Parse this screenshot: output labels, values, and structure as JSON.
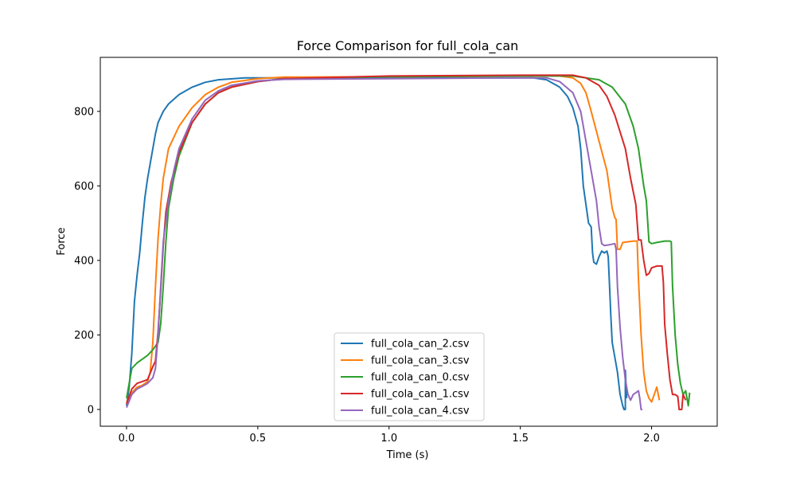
{
  "chart_data": {
    "type": "line",
    "title": "Force Comparison for full_cola_can",
    "xlabel": "Time (s)",
    "ylabel": "Force",
    "xlim": [
      -0.1,
      2.25
    ],
    "ylim": [
      -45,
      945
    ],
    "xticks": [
      0.0,
      0.5,
      1.0,
      1.5,
      2.0
    ],
    "xtick_labels": [
      "0.0",
      "0.5",
      "1.0",
      "1.5",
      "2.0"
    ],
    "yticks": [
      0,
      200,
      400,
      600,
      800
    ],
    "ytick_labels": [
      "0",
      "200",
      "400",
      "600",
      "800"
    ],
    "grid": false,
    "legend_position": "bottom-center",
    "series": [
      {
        "name": "full_cola_can_2.csv",
        "color": "#1f77b4",
        "points": [
          [
            0.0,
            10
          ],
          [
            0.01,
            60
          ],
          [
            0.02,
            150
          ],
          [
            0.03,
            290
          ],
          [
            0.04,
            360
          ],
          [
            0.05,
            420
          ],
          [
            0.06,
            500
          ],
          [
            0.07,
            570
          ],
          [
            0.08,
            620
          ],
          [
            0.09,
            660
          ],
          [
            0.1,
            700
          ],
          [
            0.11,
            740
          ],
          [
            0.12,
            770
          ],
          [
            0.14,
            800
          ],
          [
            0.16,
            820
          ],
          [
            0.2,
            845
          ],
          [
            0.25,
            865
          ],
          [
            0.3,
            878
          ],
          [
            0.35,
            885
          ],
          [
            0.45,
            890
          ],
          [
            0.6,
            890
          ],
          [
            1.0,
            890
          ],
          [
            1.4,
            890
          ],
          [
            1.55,
            890
          ],
          [
            1.6,
            885
          ],
          [
            1.65,
            865
          ],
          [
            1.68,
            840
          ],
          [
            1.7,
            810
          ],
          [
            1.72,
            760
          ],
          [
            1.73,
            700
          ],
          [
            1.74,
            600
          ],
          [
            1.75,
            550
          ],
          [
            1.76,
            500
          ],
          [
            1.77,
            490
          ],
          [
            1.775,
            420
          ],
          [
            1.78,
            395
          ],
          [
            1.79,
            390
          ],
          [
            1.8,
            410
          ],
          [
            1.81,
            425
          ],
          [
            1.82,
            420
          ],
          [
            1.83,
            425
          ],
          [
            1.835,
            410
          ],
          [
            1.84,
            330
          ],
          [
            1.845,
            250
          ],
          [
            1.85,
            180
          ],
          [
            1.86,
            140
          ],
          [
            1.87,
            100
          ],
          [
            1.88,
            40
          ],
          [
            1.89,
            10
          ],
          [
            1.895,
            0
          ],
          [
            1.9,
            0
          ],
          [
            1.9,
            105
          ],
          [
            1.905,
            30
          ]
        ]
      },
      {
        "name": "full_cola_can_3.csv",
        "color": "#ff7f0e",
        "points": [
          [
            0.0,
            20
          ],
          [
            0.02,
            45
          ],
          [
            0.04,
            60
          ],
          [
            0.06,
            65
          ],
          [
            0.08,
            75
          ],
          [
            0.09,
            100
          ],
          [
            0.1,
            180
          ],
          [
            0.11,
            330
          ],
          [
            0.12,
            460
          ],
          [
            0.13,
            550
          ],
          [
            0.14,
            620
          ],
          [
            0.16,
            700
          ],
          [
            0.2,
            760
          ],
          [
            0.25,
            810
          ],
          [
            0.3,
            845
          ],
          [
            0.35,
            865
          ],
          [
            0.4,
            878
          ],
          [
            0.5,
            888
          ],
          [
            0.6,
            892
          ],
          [
            1.0,
            893
          ],
          [
            1.5,
            895
          ],
          [
            1.65,
            895
          ],
          [
            1.7,
            890
          ],
          [
            1.73,
            875
          ],
          [
            1.75,
            850
          ],
          [
            1.77,
            800
          ],
          [
            1.8,
            720
          ],
          [
            1.83,
            640
          ],
          [
            1.85,
            540
          ],
          [
            1.86,
            515
          ],
          [
            1.865,
            510
          ],
          [
            1.87,
            430
          ],
          [
            1.88,
            430
          ],
          [
            1.89,
            448
          ],
          [
            1.93,
            452
          ],
          [
            1.945,
            452
          ],
          [
            1.95,
            350
          ],
          [
            1.96,
            200
          ],
          [
            1.97,
            100
          ],
          [
            1.98,
            50
          ],
          [
            1.99,
            30
          ],
          [
            2.0,
            20
          ],
          [
            2.01,
            40
          ],
          [
            2.02,
            60
          ],
          [
            2.03,
            25
          ]
        ]
      },
      {
        "name": "full_cola_can_0.csv",
        "color": "#2ca02c",
        "points": [
          [
            0.0,
            30
          ],
          [
            0.01,
            70
          ],
          [
            0.02,
            110
          ],
          [
            0.04,
            125
          ],
          [
            0.06,
            135
          ],
          [
            0.08,
            145
          ],
          [
            0.1,
            160
          ],
          [
            0.11,
            170
          ],
          [
            0.12,
            180
          ],
          [
            0.13,
            230
          ],
          [
            0.14,
            330
          ],
          [
            0.15,
            450
          ],
          [
            0.16,
            540
          ],
          [
            0.18,
            620
          ],
          [
            0.2,
            680
          ],
          [
            0.25,
            770
          ],
          [
            0.3,
            820
          ],
          [
            0.35,
            850
          ],
          [
            0.4,
            865
          ],
          [
            0.5,
            880
          ],
          [
            0.6,
            888
          ],
          [
            1.0,
            893
          ],
          [
            1.5,
            895
          ],
          [
            1.7,
            895
          ],
          [
            1.8,
            885
          ],
          [
            1.85,
            865
          ],
          [
            1.9,
            820
          ],
          [
            1.93,
            760
          ],
          [
            1.95,
            700
          ],
          [
            1.97,
            600
          ],
          [
            1.98,
            560
          ],
          [
            1.99,
            450
          ],
          [
            2.0,
            445
          ],
          [
            2.02,
            448
          ],
          [
            2.05,
            452
          ],
          [
            2.07,
            452
          ],
          [
            2.075,
            450
          ],
          [
            2.08,
            330
          ],
          [
            2.09,
            200
          ],
          [
            2.1,
            120
          ],
          [
            2.11,
            70
          ],
          [
            2.12,
            40
          ],
          [
            2.13,
            50
          ],
          [
            2.14,
            10
          ],
          [
            2.145,
            45
          ]
        ]
      },
      {
        "name": "full_cola_can_1.csv",
        "color": "#d62728",
        "points": [
          [
            0.0,
            15
          ],
          [
            0.02,
            55
          ],
          [
            0.04,
            70
          ],
          [
            0.06,
            75
          ],
          [
            0.08,
            80
          ],
          [
            0.1,
            115
          ],
          [
            0.11,
            130
          ],
          [
            0.12,
            210
          ],
          [
            0.13,
            320
          ],
          [
            0.14,
            440
          ],
          [
            0.15,
            530
          ],
          [
            0.17,
            610
          ],
          [
            0.2,
            690
          ],
          [
            0.25,
            770
          ],
          [
            0.3,
            820
          ],
          [
            0.35,
            850
          ],
          [
            0.4,
            865
          ],
          [
            0.5,
            880
          ],
          [
            0.6,
            888
          ],
          [
            1.0,
            895
          ],
          [
            1.5,
            897
          ],
          [
            1.7,
            897
          ],
          [
            1.75,
            890
          ],
          [
            1.8,
            870
          ],
          [
            1.83,
            840
          ],
          [
            1.86,
            790
          ],
          [
            1.9,
            700
          ],
          [
            1.92,
            620
          ],
          [
            1.94,
            550
          ],
          [
            1.95,
            455
          ],
          [
            1.96,
            455
          ],
          [
            1.97,
            400
          ],
          [
            1.98,
            360
          ],
          [
            1.99,
            365
          ],
          [
            2.0,
            380
          ],
          [
            2.02,
            385
          ],
          [
            2.04,
            385
          ],
          [
            2.045,
            340
          ],
          [
            2.05,
            230
          ],
          [
            2.06,
            150
          ],
          [
            2.07,
            80
          ],
          [
            2.08,
            40
          ],
          [
            2.09,
            40
          ],
          [
            2.1,
            35
          ],
          [
            2.105,
            0
          ],
          [
            2.115,
            0
          ],
          [
            2.12,
            40
          ],
          [
            2.13,
            25
          ]
        ]
      },
      {
        "name": "full_cola_can_4.csv",
        "color": "#9467bd",
        "points": [
          [
            0.0,
            5
          ],
          [
            0.02,
            40
          ],
          [
            0.04,
            55
          ],
          [
            0.06,
            62
          ],
          [
            0.08,
            70
          ],
          [
            0.1,
            85
          ],
          [
            0.11,
            110
          ],
          [
            0.12,
            200
          ],
          [
            0.13,
            330
          ],
          [
            0.14,
            450
          ],
          [
            0.16,
            560
          ],
          [
            0.18,
            640
          ],
          [
            0.2,
            700
          ],
          [
            0.25,
            780
          ],
          [
            0.3,
            830
          ],
          [
            0.35,
            855
          ],
          [
            0.4,
            870
          ],
          [
            0.5,
            882
          ],
          [
            0.6,
            886
          ],
          [
            1.0,
            888
          ],
          [
            1.5,
            890
          ],
          [
            1.6,
            890
          ],
          [
            1.65,
            880
          ],
          [
            1.7,
            850
          ],
          [
            1.73,
            800
          ],
          [
            1.75,
            720
          ],
          [
            1.77,
            640
          ],
          [
            1.79,
            560
          ],
          [
            1.8,
            490
          ],
          [
            1.81,
            445
          ],
          [
            1.82,
            440
          ],
          [
            1.84,
            442
          ],
          [
            1.86,
            445
          ],
          [
            1.865,
            430
          ],
          [
            1.87,
            330
          ],
          [
            1.88,
            220
          ],
          [
            1.89,
            140
          ],
          [
            1.9,
            80
          ],
          [
            1.91,
            40
          ],
          [
            1.92,
            25
          ],
          [
            1.93,
            40
          ],
          [
            1.94,
            45
          ],
          [
            1.95,
            50
          ],
          [
            1.955,
            30
          ],
          [
            1.96,
            0
          ],
          [
            1.965,
            0
          ]
        ]
      }
    ]
  }
}
